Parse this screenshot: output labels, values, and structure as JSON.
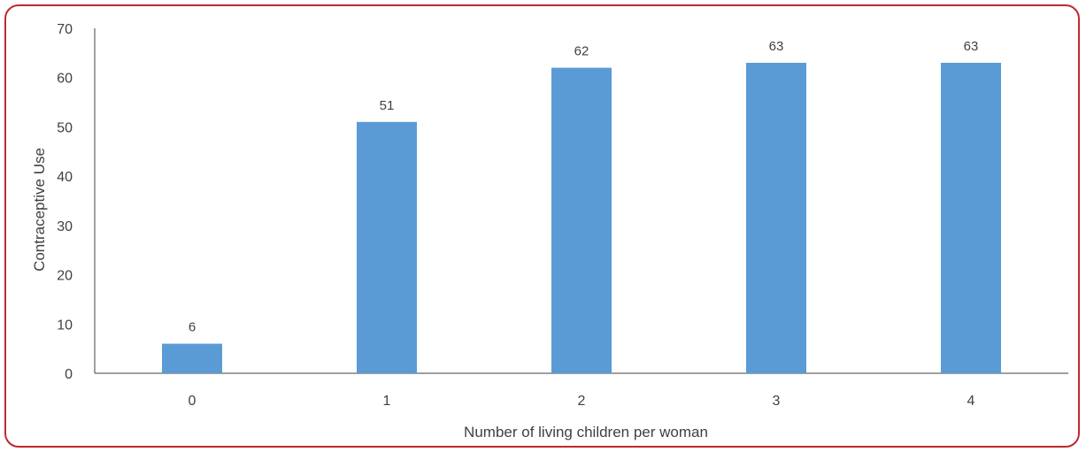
{
  "chart_data": {
    "type": "bar",
    "title": "",
    "xlabel": "Number of living children per woman",
    "ylabel": "Contraceptive Use",
    "categories": [
      "0",
      "1",
      "2",
      "3",
      "4"
    ],
    "values": [
      6,
      51,
      62,
      63,
      63
    ],
    "data_labels": [
      "6",
      "51",
      "62",
      "63",
      "63"
    ],
    "ylim": [
      0,
      70
    ],
    "yticks": [
      0,
      10,
      20,
      30,
      40,
      50,
      60,
      70
    ],
    "grid": false,
    "legend": "none",
    "bar_color": "#5b9bd5",
    "frame_color": "#c0282d"
  }
}
